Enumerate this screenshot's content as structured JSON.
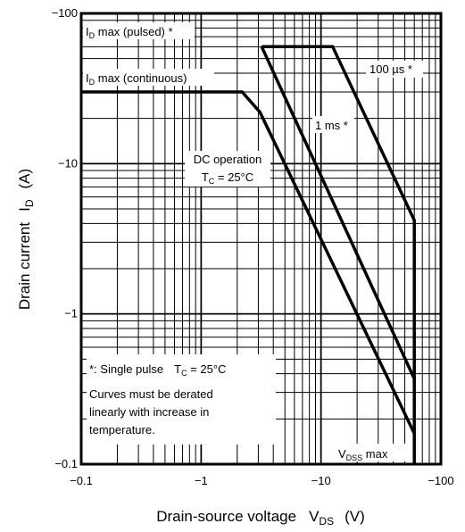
{
  "chart_data": {
    "type": "line",
    "xlabel": "Drain-source voltage",
    "xlabel_symbol": "V",
    "xlabel_sub": "DS",
    "xlabel_unit": "(V)",
    "ylabel": "Drain current",
    "ylabel_symbol": "I",
    "ylabel_sub": "D",
    "ylabel_unit": "(A)",
    "x_scale": "log",
    "y_scale": "log",
    "xlim": [
      -0.1,
      -100
    ],
    "ylim": [
      -0.1,
      -100
    ],
    "x_ticks": [
      {
        "value": -0.1,
        "label": "−0.1"
      },
      {
        "value": -1,
        "label": "−1"
      },
      {
        "value": -10,
        "label": "−10"
      },
      {
        "value": -100,
        "label": "−100"
      }
    ],
    "y_ticks": [
      {
        "value": -0.1,
        "label": "−0.1"
      },
      {
        "value": -1,
        "label": "−1"
      },
      {
        "value": -10,
        "label": "−10"
      },
      {
        "value": -100,
        "label": "−100"
      }
    ],
    "grid": true,
    "series": [
      {
        "name": "100 µs *",
        "x": [
          -3.2,
          -12.5,
          -60,
          -60
        ],
        "y": [
          -60,
          -60,
          -4.2,
          -0.1
        ]
      },
      {
        "name": "1 ms *",
        "x": [
          -3.2,
          -60
        ],
        "y": [
          -60,
          -0.37
        ]
      },
      {
        "name": "DC operation",
        "x": [
          -0.1,
          -2.2,
          -3.1,
          -60
        ],
        "y": [
          -30,
          -30,
          -22,
          -0.16
        ]
      }
    ],
    "annotations": {
      "id_pulsed": {
        "main": "I",
        "sub": "D",
        "rest": " max (pulsed) *"
      },
      "id_continuous": {
        "main": "I",
        "sub": "D",
        "rest": " max (continuous)"
      },
      "us100": "100 µs *",
      "ms1": "1 ms *",
      "dc_line1": "DC operation",
      "dc_line2": {
        "main": "T",
        "sub": "C",
        "rest": " = 25°C"
      },
      "vdss": {
        "main": "V",
        "sub": "DSS",
        "rest": " max"
      },
      "note1": {
        "text": "*: Single pulse",
        "tc_main": "T",
        "tc_sub": "C",
        "tc_rest": " = 25°C"
      },
      "note2": "Curves must be derated",
      "note3": "linearly with increase in",
      "note4": "temperature."
    }
  }
}
